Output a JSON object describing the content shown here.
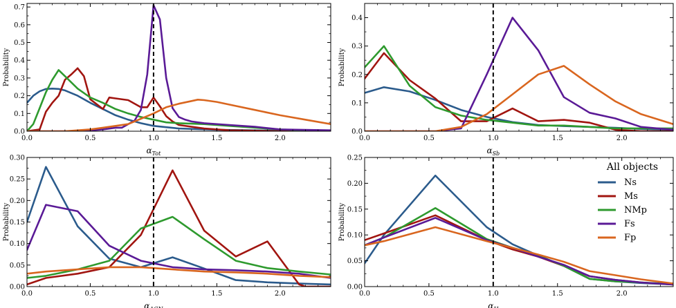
{
  "figure": {
    "legend_title": "All objects",
    "series_names": [
      "Ns",
      "Ms",
      "NMp",
      "Fs",
      "Fp"
    ],
    "series_colors": {
      "Ns": "#2b5b8c",
      "Ms": "#a11510",
      "NMp": "#2e9a2e",
      "Fs": "#5a1a96",
      "Fp": "#d9661f"
    }
  },
  "chart_data": [
    {
      "type": "line",
      "id": "tot",
      "xlabel_symbol": "α",
      "xlabel_sub": "Tot",
      "ylabel": "Probability",
      "xlim": [
        0,
        2.4
      ],
      "ylim": [
        0,
        0.72
      ],
      "xticks": [
        0.0,
        0.5,
        1.0,
        1.5,
        2.0
      ],
      "xtick_labels": [
        "0.0",
        "0.5",
        "1.0",
        "1.5",
        "2.0"
      ],
      "yticks": [
        0.0,
        0.1,
        0.2,
        0.3,
        0.4,
        0.5,
        0.6,
        0.7
      ],
      "ytick_labels": [
        "0.0",
        "0.1",
        "0.2",
        "0.3",
        "0.4",
        "0.5",
        "0.6",
        "0.7"
      ],
      "vline": 1.0,
      "series": [
        {
          "name": "Ns",
          "x": [
            0.0,
            0.05,
            0.1,
            0.15,
            0.2,
            0.25,
            0.3,
            0.4,
            0.5,
            0.6,
            0.7,
            0.8,
            0.9,
            1.0,
            1.2,
            1.5,
            2.0,
            2.4
          ],
          "y": [
            0.16,
            0.2,
            0.225,
            0.238,
            0.24,
            0.238,
            0.23,
            0.2,
            0.16,
            0.125,
            0.09,
            0.065,
            0.045,
            0.03,
            0.015,
            0.008,
            0.003,
            0.001
          ]
        },
        {
          "name": "Ms",
          "x": [
            0.0,
            0.1,
            0.15,
            0.2,
            0.25,
            0.3,
            0.35,
            0.4,
            0.45,
            0.5,
            0.6,
            0.65,
            0.7,
            0.8,
            0.9,
            0.95,
            1.0,
            1.05,
            1.1,
            1.15,
            1.2,
            1.4,
            1.6,
            2.0,
            2.4
          ],
          "y": [
            0.0,
            0.01,
            0.11,
            0.16,
            0.2,
            0.29,
            0.32,
            0.355,
            0.31,
            0.18,
            0.125,
            0.19,
            0.185,
            0.175,
            0.135,
            0.135,
            0.19,
            0.14,
            0.085,
            0.055,
            0.035,
            0.015,
            0.005,
            0.0,
            0.0
          ]
        },
        {
          "name": "NMp",
          "x": [
            0.0,
            0.05,
            0.1,
            0.15,
            0.2,
            0.25,
            0.3,
            0.4,
            0.5,
            0.6,
            0.7,
            0.8,
            0.9,
            1.0,
            1.1,
            1.2,
            1.4,
            1.6,
            2.0,
            2.4
          ],
          "y": [
            0.0,
            0.04,
            0.13,
            0.22,
            0.29,
            0.345,
            0.31,
            0.24,
            0.19,
            0.16,
            0.125,
            0.1,
            0.08,
            0.065,
            0.05,
            0.045,
            0.04,
            0.03,
            0.01,
            0.0
          ]
        },
        {
          "name": "Fs",
          "x": [
            0.0,
            0.4,
            0.5,
            0.6,
            0.7,
            0.75,
            0.85,
            0.9,
            0.95,
            1.0,
            1.05,
            1.1,
            1.15,
            1.2,
            1.25,
            1.3,
            1.35,
            1.4,
            1.6,
            1.8,
            2.0,
            2.4
          ],
          "y": [
            0.0,
            0.0,
            0.005,
            0.01,
            0.02,
            0.02,
            0.06,
            0.12,
            0.32,
            0.71,
            0.63,
            0.3,
            0.13,
            0.08,
            0.065,
            0.055,
            0.05,
            0.045,
            0.035,
            0.025,
            0.01,
            0.005
          ]
        },
        {
          "name": "Fp",
          "x": [
            0.0,
            0.3,
            0.5,
            0.6,
            0.7,
            0.8,
            0.9,
            1.0,
            1.1,
            1.2,
            1.3,
            1.35,
            1.4,
            1.5,
            1.6,
            1.8,
            2.0,
            2.2,
            2.4
          ],
          "y": [
            0.0,
            0.0,
            0.01,
            0.02,
            0.03,
            0.04,
            0.07,
            0.1,
            0.135,
            0.155,
            0.17,
            0.178,
            0.175,
            0.165,
            0.15,
            0.12,
            0.09,
            0.065,
            0.04
          ]
        }
      ]
    },
    {
      "type": "line",
      "id": "sb",
      "xlabel_symbol": "α",
      "xlabel_sub": "Sb",
      "ylabel": "Probability",
      "xlim": [
        0,
        2.4
      ],
      "ylim": [
        0,
        0.45
      ],
      "xticks": [
        0.0,
        0.5,
        1.0,
        1.5,
        2.0
      ],
      "xtick_labels": [
        "0.0",
        "0.5",
        "1.0",
        "1.5",
        "2.0"
      ],
      "yticks": [
        0.0,
        0.1,
        0.2,
        0.3,
        0.4
      ],
      "ytick_labels": [
        "0.0",
        "0.1",
        "0.2",
        "0.3",
        "0.4"
      ],
      "vline": 1.0,
      "series": [
        {
          "name": "Ns",
          "x": [
            0.0,
            0.15,
            0.35,
            0.55,
            0.75,
            0.95,
            1.15,
            1.35,
            1.55,
            1.75,
            1.95,
            2.15,
            2.4
          ],
          "y": [
            0.135,
            0.155,
            0.14,
            0.11,
            0.075,
            0.05,
            0.032,
            0.022,
            0.018,
            0.015,
            0.012,
            0.008,
            0.005
          ]
        },
        {
          "name": "Ms",
          "x": [
            0.0,
            0.15,
            0.35,
            0.55,
            0.75,
            0.95,
            1.15,
            1.35,
            1.55,
            1.75,
            1.95,
            2.15,
            2.4
          ],
          "y": [
            0.185,
            0.275,
            0.18,
            0.115,
            0.035,
            0.035,
            0.08,
            0.035,
            0.04,
            0.03,
            0.005,
            0.0,
            0.0
          ]
        },
        {
          "name": "NMp",
          "x": [
            0.0,
            0.15,
            0.35,
            0.55,
            0.75,
            0.95,
            1.15,
            1.35,
            1.55,
            1.75,
            1.95,
            2.15,
            2.4
          ],
          "y": [
            0.225,
            0.3,
            0.16,
            0.085,
            0.055,
            0.04,
            0.03,
            0.02,
            0.02,
            0.015,
            0.01,
            0.01,
            0.01
          ]
        },
        {
          "name": "Fs",
          "x": [
            0.0,
            0.55,
            0.75,
            0.95,
            1.15,
            1.35,
            1.55,
            1.75,
            1.95,
            2.15,
            2.4
          ],
          "y": [
            0.0,
            0.0,
            0.01,
            0.2,
            0.4,
            0.285,
            0.12,
            0.065,
            0.045,
            0.015,
            0.005
          ]
        },
        {
          "name": "Fp",
          "x": [
            0.0,
            0.55,
            0.75,
            0.95,
            1.15,
            1.35,
            1.55,
            1.75,
            1.95,
            2.15,
            2.4
          ],
          "y": [
            0.0,
            0.0,
            0.015,
            0.06,
            0.13,
            0.2,
            0.23,
            0.165,
            0.105,
            0.06,
            0.025
          ]
        }
      ]
    },
    {
      "type": "line",
      "id": "agn",
      "xlabel_symbol": "α",
      "xlabel_sub": "AGN",
      "ylabel": "Probability",
      "xlim": [
        0,
        2.4
      ],
      "ylim": [
        0,
        0.3
      ],
      "xticks": [
        0.0,
        0.5,
        1.0,
        1.5,
        2.0
      ],
      "xtick_labels": [
        "0.0",
        "0.5",
        "1.0",
        "1.5",
        "2.0"
      ],
      "yticks": [
        0.0,
        0.05,
        0.1,
        0.15,
        0.2,
        0.25,
        0.3
      ],
      "ytick_labels": [
        "0.00",
        "0.05",
        "0.10",
        "0.15",
        "0.20",
        "0.25",
        "0.30"
      ],
      "vline": 1.0,
      "series": [
        {
          "name": "Ns",
          "x": [
            0.0,
            0.15,
            0.4,
            0.65,
            0.9,
            1.15,
            1.4,
            1.65,
            1.9,
            2.15,
            2.4
          ],
          "y": [
            0.15,
            0.278,
            0.14,
            0.065,
            0.045,
            0.068,
            0.042,
            0.015,
            0.01,
            0.007,
            0.005
          ]
        },
        {
          "name": "Ms",
          "x": [
            0.0,
            0.15,
            0.4,
            0.65,
            0.9,
            1.15,
            1.4,
            1.65,
            1.9,
            2.15,
            2.2,
            2.4
          ],
          "y": [
            0.005,
            0.02,
            0.03,
            0.045,
            0.12,
            0.27,
            0.13,
            0.07,
            0.105,
            0.005,
            0.0,
            0.0
          ]
        },
        {
          "name": "NMp",
          "x": [
            0.0,
            0.15,
            0.4,
            0.65,
            0.9,
            1.15,
            1.4,
            1.65,
            1.9,
            2.15,
            2.4
          ],
          "y": [
            0.02,
            0.025,
            0.04,
            0.06,
            0.135,
            0.162,
            0.11,
            0.06,
            0.043,
            0.035,
            0.028
          ]
        },
        {
          "name": "Fs",
          "x": [
            0.0,
            0.15,
            0.4,
            0.65,
            0.9,
            1.15,
            1.4,
            1.65,
            1.9,
            2.15,
            2.4
          ],
          "y": [
            0.085,
            0.19,
            0.175,
            0.095,
            0.06,
            0.045,
            0.04,
            0.038,
            0.035,
            0.03,
            0.02
          ]
        },
        {
          "name": "Fp",
          "x": [
            0.0,
            0.15,
            0.4,
            0.65,
            0.9,
            1.15,
            1.4,
            1.65,
            1.9,
            2.15,
            2.4
          ],
          "y": [
            0.03,
            0.035,
            0.04,
            0.045,
            0.045,
            0.04,
            0.035,
            0.033,
            0.03,
            0.025,
            0.022
          ]
        }
      ]
    },
    {
      "type": "line",
      "id": "h",
      "xlabel_symbol": "α",
      "xlabel_sub": "H",
      "ylabel": "Probability",
      "xlim": [
        0,
        2.4
      ],
      "ylim": [
        0,
        0.25
      ],
      "xticks": [
        0.0,
        0.5,
        1.0,
        1.5,
        2.0
      ],
      "xtick_labels": [
        "0.0",
        "0.5",
        "1.0",
        "1.5",
        "2.0"
      ],
      "yticks": [
        0.0,
        0.05,
        0.1,
        0.15,
        0.2,
        0.25
      ],
      "ytick_labels": [
        "0.00",
        "0.05",
        "0.10",
        "0.15",
        "0.20",
        "0.25"
      ],
      "vline": 1.0,
      "legend": {
        "title": "All objects",
        "placement": "right"
      },
      "series": [
        {
          "name": "Ns",
          "x": [
            0.0,
            0.15,
            0.55,
            0.95,
            1.15,
            1.35,
            1.55,
            1.75,
            1.95,
            2.15,
            2.4
          ],
          "y": [
            0.045,
            0.1,
            0.215,
            0.115,
            0.082,
            0.06,
            0.04,
            0.015,
            0.01,
            0.007,
            0.004
          ]
        },
        {
          "name": "Ms",
          "x": [
            0.0,
            0.15,
            0.55,
            0.95,
            1.15,
            1.35,
            1.55,
            1.75,
            1.95,
            2.15,
            2.4
          ],
          "y": [
            0.09,
            0.103,
            0.138,
            0.09,
            0.072,
            0.058,
            0.04,
            0.02,
            0.013,
            0.008,
            0.004
          ]
        },
        {
          "name": "NMp",
          "x": [
            0.0,
            0.15,
            0.55,
            0.95,
            1.15,
            1.35,
            1.55,
            1.75,
            1.95,
            2.15,
            2.4
          ],
          "y": [
            0.08,
            0.095,
            0.152,
            0.092,
            0.075,
            0.06,
            0.04,
            0.015,
            0.01,
            0.008,
            0.005
          ]
        },
        {
          "name": "Fs",
          "x": [
            0.0,
            0.15,
            0.55,
            0.95,
            1.15,
            1.35,
            1.55,
            1.75,
            1.95,
            2.15,
            2.4
          ],
          "y": [
            0.08,
            0.095,
            0.133,
            0.09,
            0.075,
            0.058,
            0.042,
            0.02,
            0.013,
            0.008,
            0.004
          ]
        },
        {
          "name": "Fp",
          "x": [
            0.0,
            0.15,
            0.55,
            0.95,
            1.15,
            1.35,
            1.55,
            1.75,
            1.95,
            2.15,
            2.4
          ],
          "y": [
            0.08,
            0.088,
            0.115,
            0.088,
            0.075,
            0.062,
            0.048,
            0.03,
            0.022,
            0.014,
            0.006
          ]
        }
      ]
    }
  ]
}
